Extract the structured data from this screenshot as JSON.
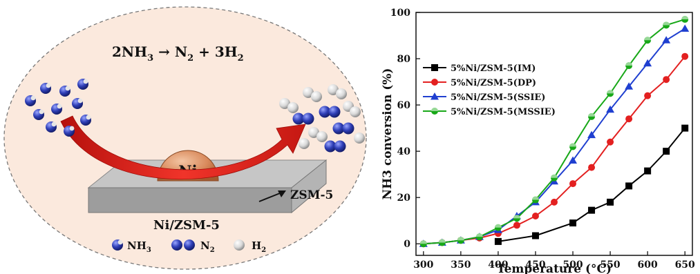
{
  "scheme": {
    "reaction": {
      "lhs": "2NH",
      "lhs_sub": "3",
      "arrow": " → ",
      "n2": "N",
      "n2_sub": "2",
      "plus": " + ",
      "h2": "3H",
      "h2_sub": "2"
    },
    "particle_label": "Ni",
    "support_label": "ZSM-5",
    "catalyst_label": "Ni/ZSM-5",
    "legend": [
      {
        "symbol": "nh3-molecule",
        "label": "NH",
        "sub": "3"
      },
      {
        "symbol": "n2-molecule",
        "label": "N",
        "sub": "2"
      },
      {
        "symbol": "h2-molecule",
        "label": "H",
        "sub": "2"
      }
    ],
    "colors": {
      "background": "#fbe9dd",
      "particle": "#d98a5c",
      "arrow": "#e0241b",
      "support": "#a9a9a9",
      "n_atom": "#2f3fb7",
      "h_atom": "#d8d8d8"
    }
  },
  "chart_data": {
    "type": "line",
    "xlabel": "Temperature (°C)",
    "ylabel": "NH3 conversion (%)",
    "xlim": [
      290,
      660
    ],
    "ylim": [
      -5,
      100
    ],
    "xticks": [
      "300",
      "350",
      "400",
      "450",
      "500",
      "550",
      "600",
      "650"
    ],
    "yticks": [
      "0",
      "20",
      "40",
      "60",
      "80",
      "100"
    ],
    "legend_position": "top-left",
    "series": [
      {
        "name": "5%Ni/ZSM-5(IM)",
        "color": "#000000",
        "marker": "square",
        "x": [
          400,
          450,
          500,
          525,
          550,
          575,
          600,
          625,
          650
        ],
        "y": [
          1,
          3.5,
          9,
          14.5,
          18,
          25,
          31.5,
          40,
          50
        ]
      },
      {
        "name": "5%Ni/ZSM-5(DP)",
        "color": "#e32020",
        "marker": "circle",
        "x": [
          300,
          325,
          350,
          375,
          400,
          425,
          450,
          475,
          500,
          525,
          550,
          575,
          600,
          625,
          650
        ],
        "y": [
          0,
          0.5,
          1.5,
          2.5,
          4.5,
          8,
          12,
          18,
          26,
          33,
          44,
          54,
          64,
          71,
          81
        ]
      },
      {
        "name": "5%Ni/ZSM-5(SSIE)",
        "color": "#1f3fd0",
        "marker": "triangle",
        "x": [
          300,
          325,
          350,
          375,
          400,
          425,
          450,
          475,
          500,
          525,
          550,
          575,
          600,
          625,
          650
        ],
        "y": [
          0,
          0.5,
          1.5,
          3,
          6,
          12,
          18,
          27,
          36,
          47,
          58,
          68,
          78,
          88,
          93
        ]
      },
      {
        "name": "5%Ni/ZSM-5(MSSIE)",
        "color": "#18a818",
        "marker": "circle-half",
        "x": [
          300,
          325,
          350,
          375,
          400,
          425,
          450,
          475,
          500,
          525,
          550,
          575,
          600,
          625,
          650
        ],
        "y": [
          0,
          0.5,
          1.5,
          3,
          7,
          11,
          19,
          28.5,
          42,
          55,
          65,
          77,
          88,
          94.5,
          97
        ]
      }
    ]
  }
}
